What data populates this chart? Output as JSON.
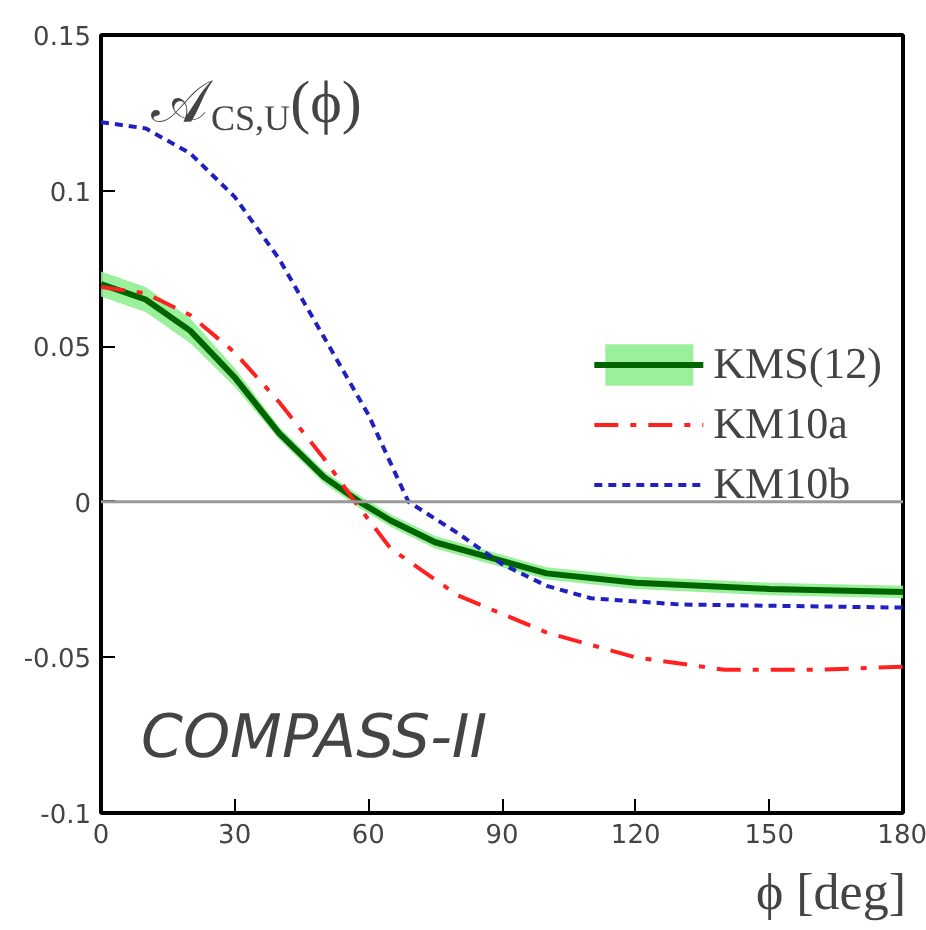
{
  "chart_data": {
    "type": "line",
    "xlabel": "ϕ  [deg]",
    "annotations": [
      "𝒜$_{CS,U}$(ϕ)",
      "COMPASS-II"
    ],
    "x": [
      0,
      10,
      20,
      30,
      40,
      50,
      58,
      65,
      75,
      90,
      100,
      120,
      150,
      180
    ],
    "xlim": [
      0,
      180
    ],
    "xticks": [
      0,
      30,
      60,
      90,
      120,
      150,
      180
    ],
    "ylim": [
      -0.1,
      0.15
    ],
    "yticks": [
      -0.1,
      -0.05,
      0,
      0.05,
      0.1,
      0.15
    ],
    "grid": false,
    "legend": "right",
    "ref_lines": [
      {
        "axis": "y",
        "value": 0,
        "color": "#999999"
      }
    ],
    "series": [
      {
        "name": "KMS(12)",
        "color": "#006400",
        "line_style": "solid",
        "values": [
          0.07,
          0.065,
          0.055,
          0.04,
          0.022,
          0.008,
          0.0,
          -0.006,
          -0.013,
          -0.019,
          -0.023,
          -0.026,
          -0.028,
          -0.029
        ],
        "lower": [
          0.066,
          0.061,
          0.051,
          0.037,
          0.02,
          0.006,
          -0.002,
          -0.008,
          -0.015,
          -0.021,
          -0.025,
          -0.028,
          -0.03,
          -0.031
        ],
        "upper": [
          0.074,
          0.069,
          0.059,
          0.043,
          0.024,
          0.01,
          0.002,
          -0.004,
          -0.011,
          -0.017,
          -0.021,
          -0.024,
          -0.026,
          -0.027
        ]
      },
      {
        "name": "KM10a",
        "color": "#ff2020",
        "line_style": "dashdot",
        "x": [
          0,
          10,
          20,
          30,
          40,
          50,
          57,
          65,
          80,
          100,
          120,
          140,
          160,
          180
        ],
        "values": [
          0.069,
          0.067,
          0.06,
          0.048,
          0.032,
          0.014,
          0.0,
          -0.015,
          -0.03,
          -0.042,
          -0.05,
          -0.054,
          -0.054,
          -0.053
        ]
      },
      {
        "name": "KM10b",
        "color": "#2020c0",
        "line_style": "dotted",
        "x": [
          0,
          10,
          20,
          30,
          40,
          50,
          60,
          69,
          80,
          90,
          100,
          110,
          130,
          180
        ],
        "values": [
          0.122,
          0.12,
          0.112,
          0.098,
          0.078,
          0.053,
          0.028,
          0.0,
          -0.01,
          -0.02,
          -0.027,
          -0.031,
          -0.033,
          -0.034
        ]
      }
    ]
  }
}
